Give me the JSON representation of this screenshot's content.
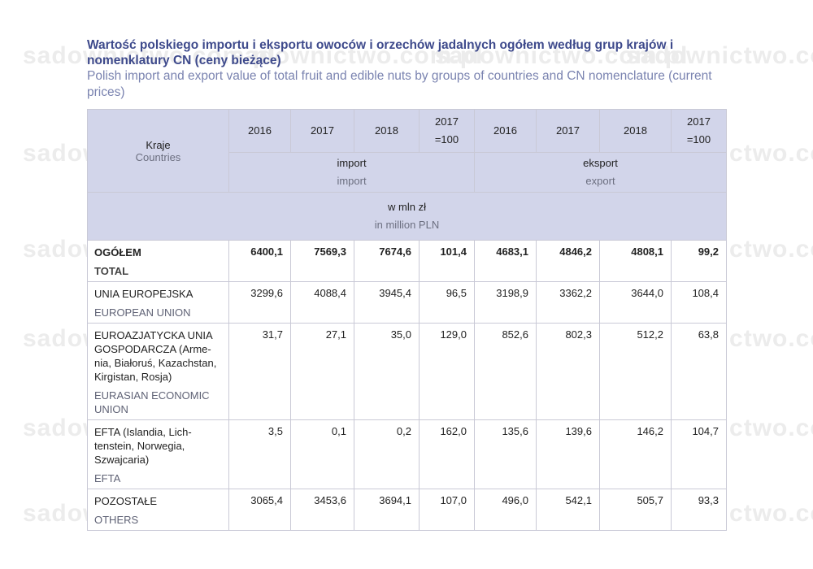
{
  "watermark": "sadownictwo.com.pl",
  "title_pl": "Wartość polskiego importu i eksportu owoców i orzechów jadalnych ogółem według grup krajów i nomenklatury CN (ceny bieżące)",
  "title_en": "Polish import and export value of total fruit and edible nuts by groups of countries and CN nomenclature (current prices)",
  "header": {
    "countries_pl": "Kraje",
    "countries_en": "Countries",
    "years": [
      "2016",
      "2017",
      "2018",
      "2017\n=100",
      "2016",
      "2017",
      "2018",
      "2017\n=100"
    ],
    "import_pl": "import",
    "import_en": "import",
    "export_pl": "eksport",
    "export_en": "export",
    "unit_pl": "w mln zł",
    "unit_en": "in million PLN"
  },
  "rows": [
    {
      "pl": "OGÓŁEM",
      "en": "TOTAL",
      "values": [
        "6400,1",
        "7569,3",
        "7674,6",
        "101,4",
        "4683,1",
        "4846,2",
        "4808,1",
        "99,2"
      ]
    },
    {
      "pl": "UNIA EUROPEJSKA",
      "en": "EUROPEAN UNION",
      "values": [
        "3299,6",
        "4088,4",
        "3945,4",
        "96,5",
        "3198,9",
        "3362,2",
        "3644,0",
        "108,4"
      ]
    },
    {
      "pl": "EUROAZJATYCKA UNIA GOSPODARCZA (Arme-nia, Białoruś, Kazachstan, Kirgistan, Rosja)",
      "en": "EURASIAN ECONOMIC UNION",
      "values": [
        "31,7",
        "27,1",
        "35,0",
        "129,0",
        "852,6",
        "802,3",
        "512,2",
        "63,8"
      ]
    },
    {
      "pl": "EFTA (Islandia, Lich-tenstein, Norwegia, Szwajcaria)",
      "en": "EFTA",
      "values": [
        "3,5",
        "0,1",
        "0,2",
        "162,0",
        "135,6",
        "139,6",
        "146,2",
        "104,7"
      ]
    },
    {
      "pl": "POZOSTAŁE",
      "en": "OTHERS",
      "values": [
        "3065,4",
        "3453,6",
        "3694,1",
        "107,0",
        "496,0",
        "542,1",
        "505,7",
        "93,3"
      ]
    }
  ]
}
